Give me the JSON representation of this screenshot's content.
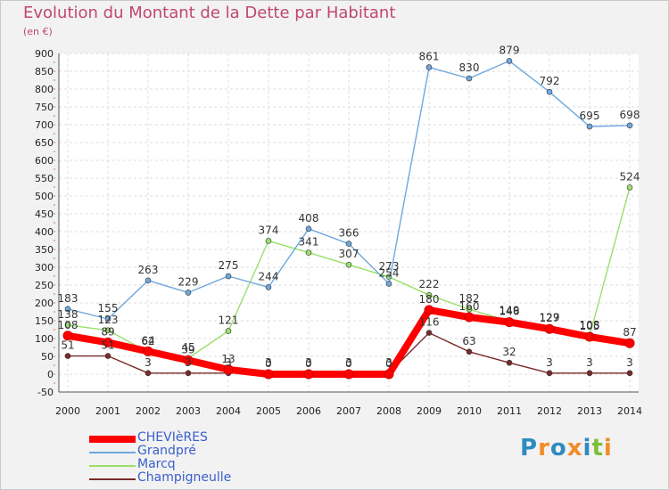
{
  "header": {
    "title": "Evolution du Montant de la Dette par Habitant",
    "unit": "(en €)"
  },
  "logo": {
    "text": "Proxiti",
    "colors": [
      "#2e8bc0",
      "#f28c28",
      "#2e8bc0",
      "#f28c28",
      "#2e8bc0",
      "#7cbf3a",
      "#f28c28"
    ]
  },
  "chart_data": {
    "type": "line",
    "title": "Evolution du Montant de la Dette par Habitant",
    "subtitle": "(en €)",
    "x": [
      2000,
      2001,
      2002,
      2003,
      2004,
      2005,
      2006,
      2007,
      2008,
      2009,
      2010,
      2011,
      2012,
      2013,
      2014
    ],
    "ylim": [
      -50,
      900
    ],
    "yticks": [
      -50,
      0,
      50,
      100,
      150,
      200,
      250,
      300,
      350,
      400,
      450,
      500,
      550,
      600,
      650,
      700,
      750,
      800,
      850,
      900
    ],
    "grid": true,
    "legend_position": "bottom-left",
    "series": [
      {
        "name": "CHEVIèRES",
        "color": "#ff0000",
        "values": [
          108,
          89,
          64,
          39,
          13,
          0,
          0,
          0,
          0,
          180,
          160,
          146,
          127,
          105,
          87
        ]
      },
      {
        "name": "Grandpré",
        "color": "#6fa8dc",
        "values": [
          183,
          155,
          263,
          229,
          275,
          244,
          408,
          366,
          254,
          861,
          830,
          879,
          792,
          695,
          698
        ]
      },
      {
        "name": "Marcq",
        "color": "#99e06b",
        "values": [
          138,
          123,
          62,
          45,
          121,
          374,
          341,
          307,
          273,
          222,
          182,
          149,
          129,
          108,
          524
        ]
      },
      {
        "name": "Champigneulle",
        "color": "#7b2a2a",
        "values": [
          51,
          51,
          3,
          3,
          3,
          3,
          3,
          3,
          3,
          116,
          63,
          32,
          3,
          3,
          3
        ]
      }
    ]
  }
}
